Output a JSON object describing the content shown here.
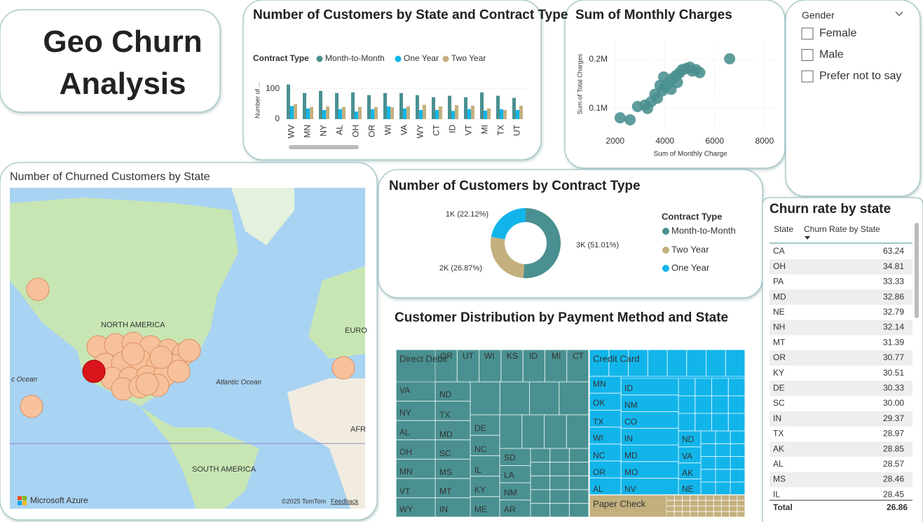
{
  "title": "Geo Churn Analysis",
  "slicer": {
    "title": "Gender",
    "options": [
      "Female",
      "Male",
      "Prefer not to say"
    ]
  },
  "map": {
    "title": "Number of Churned Customers by State",
    "labels": [
      "NORTH AMERICA",
      "SOUTH AMERICA",
      "Atlantic Ocean",
      "c Ocean",
      "EURO",
      "AFR"
    ],
    "brand": "Microsoft Azure",
    "copyright": "©2025 TomTom",
    "link": "Feedback"
  },
  "chart_data": [
    {
      "type": "bar",
      "title": "Number of Customers by State and Contract Type",
      "legend_title": "Contract Type",
      "y_label": "Number of ...",
      "categories": [
        "WV",
        "MN",
        "NY",
        "AL",
        "OH",
        "OR",
        "WI",
        "VA",
        "WY",
        "CT",
        "ID",
        "VT",
        "MI",
        "TX",
        "UT"
      ],
      "series": [
        {
          "name": "Month-to-Month",
          "color": "#4a9090",
          "values": [
            114,
            86,
            93,
            86,
            88,
            79,
            86,
            86,
            79,
            72,
            77,
            72,
            88,
            77,
            70
          ]
        },
        {
          "name": "One Year",
          "color": "#12b5ea",
          "values": [
            43,
            35,
            30,
            33,
            25,
            33,
            42,
            35,
            30,
            30,
            27,
            33,
            28,
            33,
            30
          ]
        },
        {
          "name": "Two Year",
          "color": "#c4b07e",
          "values": [
            49,
            40,
            42,
            40,
            40,
            40,
            39,
            42,
            47,
            42,
            46,
            44,
            35,
            30,
            44
          ]
        }
      ],
      "ylim": [
        0,
        120
      ],
      "yticks": [
        0,
        100
      ],
      "legend": "top"
    },
    {
      "type": "scatter",
      "title": "Sum of Monthly Charges",
      "x_label": "Sum of Monthly Charge",
      "y_label": "Sum of Total Charges",
      "color": "#4a9090",
      "x": [
        2200,
        2600,
        2900,
        3200,
        3450,
        3700,
        3900,
        4000,
        4150,
        4300,
        4450,
        4600,
        4700,
        4850,
        5000,
        5100,
        5400,
        3600,
        3800,
        4250,
        4500,
        6600,
        3300,
        3950,
        5250
      ],
      "values": [
        81000,
        77000,
        104000,
        107000,
        114000,
        121000,
        136000,
        143000,
        153000,
        161000,
        167000,
        173000,
        179000,
        181000,
        184000,
        176000,
        173000,
        129000,
        147000,
        139000,
        153000,
        201000,
        100000,
        164000,
        179000
      ],
      "xlim": [
        1500,
        8400
      ],
      "xticks": [
        2000,
        4000,
        6000,
        8000
      ],
      "ylim": [
        57000,
        235000
      ],
      "yticks": [
        {
          "value": 100000,
          "label": "0.1M"
        },
        {
          "value": 200000,
          "label": "0.2M"
        }
      ],
      "grid": true
    },
    {
      "type": "pie",
      "title": "Number of Customers by Contract Type",
      "legend_title": "Contract Type",
      "donut": true,
      "categories": [
        "Month-to-Month",
        "Two Year",
        "One Year"
      ],
      "values": [
        51.01,
        26.87,
        22.12
      ],
      "value_labels": [
        "3K (51.01%)",
        "2K (26.87%)",
        "1K (22.12%)"
      ],
      "colors": [
        "#4a9090",
        "#c4b07e",
        "#12b5ea"
      ],
      "legend": "right"
    },
    {
      "type": "treemap",
      "title": "Customer Distribution by Payment Method and State",
      "categories": [
        "Direct Debit",
        "Credit Card",
        "Paper Check"
      ],
      "values": [
        3300,
        2320,
        355
      ],
      "colors": [
        "#4a9090",
        "#12b5ea",
        "#c4b07e"
      ],
      "states": [
        [
          "OR",
          "UT",
          "WI",
          "KS",
          "ID",
          "MI",
          "CT",
          "VA",
          "NY",
          "AL",
          "OH",
          "MN",
          "VT",
          "WY",
          "ND",
          "TX",
          "MD",
          "SC",
          "MS",
          "MT",
          "IN",
          "DE",
          "NC",
          "IL",
          "KY",
          "ME",
          "SD",
          "LA",
          "NM",
          "AR"
        ],
        [
          "MN",
          "OK",
          "TX",
          "WI",
          "NC",
          "OR",
          "AL",
          "ID",
          "NM",
          "CO",
          "IN",
          "MD",
          "MO",
          "NV",
          "ND",
          "VA",
          "AK",
          "NE"
        ],
        []
      ]
    }
  ],
  "table": {
    "title": "Churn rate by state",
    "columns": [
      "State",
      "Churn Rate by State"
    ],
    "rows": [
      [
        "CA",
        "63.24"
      ],
      [
        "OH",
        "34.81"
      ],
      [
        "PA",
        "33.33"
      ],
      [
        "MD",
        "32.86"
      ],
      [
        "NE",
        "32.79"
      ],
      [
        "NH",
        "32.14"
      ],
      [
        "MT",
        "31.39"
      ],
      [
        "OR",
        "30.77"
      ],
      [
        "KY",
        "30.51"
      ],
      [
        "DE",
        "30.33"
      ],
      [
        "SC",
        "30.00"
      ],
      [
        "IN",
        "29.37"
      ],
      [
        "TX",
        "28.97"
      ],
      [
        "AK",
        "28.85"
      ],
      [
        "AL",
        "28.57"
      ],
      [
        "MS",
        "28.46"
      ],
      [
        "IL",
        "28.45"
      ]
    ],
    "total": [
      "Total",
      "26.86"
    ]
  }
}
